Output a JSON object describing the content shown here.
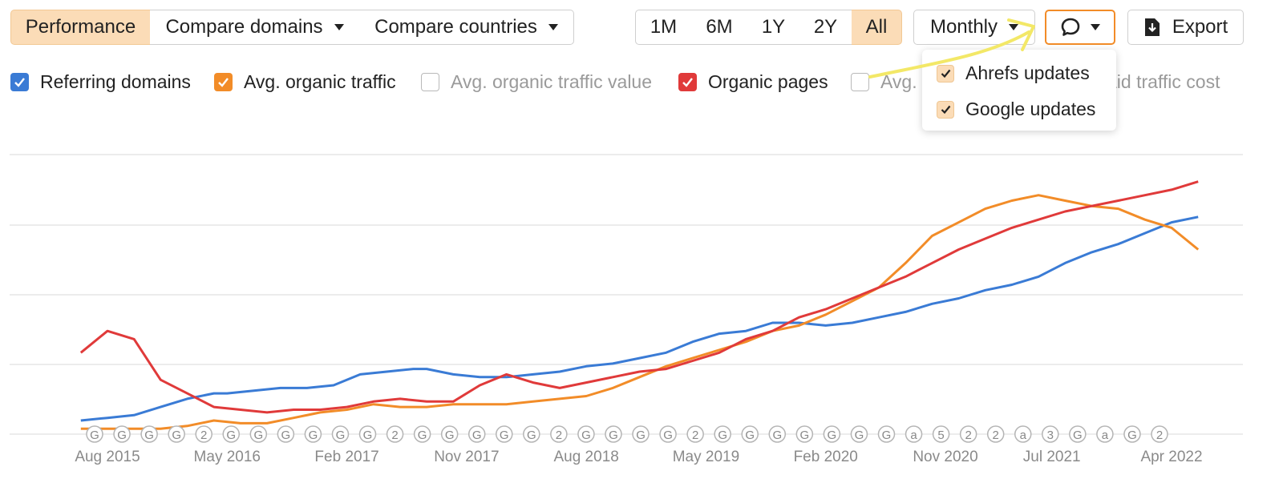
{
  "toolbar": {
    "performance": "Performance",
    "compare_domains": "Compare domains",
    "compare_countries": "Compare countries",
    "ranges": [
      "1M",
      "6M",
      "1Y",
      "2Y",
      "All"
    ],
    "active_range": "All",
    "interval": "Monthly",
    "export": "Export"
  },
  "metrics": [
    {
      "label": "Referring domains",
      "checked": true,
      "color": "#3a7bd5"
    },
    {
      "label": "Avg. organic traffic",
      "checked": true,
      "color": "#f28c28"
    },
    {
      "label": "Avg. organic traffic value",
      "checked": false,
      "color": "#b9b9b9"
    },
    {
      "label": "Organic pages",
      "checked": true,
      "color": "#e03a3a"
    },
    {
      "label": "Avg.",
      "checked": false,
      "color": "#b9b9b9"
    },
    {
      "label": "aid traffic cost",
      "checked": false,
      "color": "#b9b9b9"
    }
  ],
  "annotations_menu": {
    "items": [
      {
        "label": "Ahrefs updates",
        "checked": true
      },
      {
        "label": "Google updates",
        "checked": true
      }
    ]
  },
  "colors": {
    "accent_orange": "#f28c28",
    "highlight": "#f3e867",
    "blue": "#3a7bd5",
    "red": "#e03a3a"
  },
  "chart_data": {
    "type": "line",
    "x_tick_labels": [
      "Aug 2015",
      "May 2016",
      "Feb 2017",
      "Nov 2017",
      "Aug 2018",
      "May 2019",
      "Feb 2020",
      "Nov 2020",
      "Jul 2021",
      "Apr 2022"
    ],
    "x_tick_pos": [
      0,
      9,
      18,
      27,
      36,
      45,
      54,
      63,
      71,
      80
    ],
    "grid": true,
    "y_axis_labels": "none",
    "ylim": [
      0,
      100
    ],
    "series": [
      {
        "name": "Referring domains",
        "color": "#3a7bd5",
        "points": [
          [
            -2,
            5
          ],
          [
            0,
            6
          ],
          [
            2,
            7
          ],
          [
            4,
            10
          ],
          [
            6,
            13
          ],
          [
            8,
            15
          ],
          [
            9,
            15
          ],
          [
            11,
            16
          ],
          [
            13,
            17
          ],
          [
            15,
            17
          ],
          [
            17,
            18
          ],
          [
            19,
            22
          ],
          [
            21,
            23
          ],
          [
            23,
            24
          ],
          [
            24,
            24
          ],
          [
            26,
            22
          ],
          [
            28,
            21
          ],
          [
            30,
            21
          ],
          [
            32,
            22
          ],
          [
            34,
            23
          ],
          [
            36,
            25
          ],
          [
            38,
            26
          ],
          [
            40,
            28
          ],
          [
            42,
            30
          ],
          [
            44,
            34
          ],
          [
            46,
            37
          ],
          [
            48,
            38
          ],
          [
            50,
            41
          ],
          [
            52,
            41
          ],
          [
            54,
            40
          ],
          [
            56,
            41
          ],
          [
            58,
            43
          ],
          [
            60,
            45
          ],
          [
            62,
            48
          ],
          [
            64,
            50
          ],
          [
            66,
            53
          ],
          [
            68,
            55
          ],
          [
            70,
            58
          ],
          [
            72,
            63
          ],
          [
            74,
            67
          ],
          [
            76,
            70
          ],
          [
            78,
            74
          ],
          [
            80,
            78
          ],
          [
            82,
            80
          ]
        ]
      },
      {
        "name": "Avg. organic traffic",
        "color": "#f28c28",
        "points": [
          [
            -2,
            2
          ],
          [
            0,
            2
          ],
          [
            2,
            2
          ],
          [
            4,
            2
          ],
          [
            6,
            3
          ],
          [
            8,
            5
          ],
          [
            10,
            4
          ],
          [
            12,
            4
          ],
          [
            14,
            6
          ],
          [
            16,
            8
          ],
          [
            18,
            9
          ],
          [
            20,
            11
          ],
          [
            22,
            10
          ],
          [
            24,
            10
          ],
          [
            26,
            11
          ],
          [
            28,
            11
          ],
          [
            30,
            11
          ],
          [
            32,
            12
          ],
          [
            34,
            13
          ],
          [
            36,
            14
          ],
          [
            38,
            17
          ],
          [
            40,
            21
          ],
          [
            42,
            25
          ],
          [
            44,
            28
          ],
          [
            46,
            31
          ],
          [
            48,
            34
          ],
          [
            50,
            38
          ],
          [
            52,
            40
          ],
          [
            54,
            44
          ],
          [
            56,
            49
          ],
          [
            58,
            54
          ],
          [
            60,
            63
          ],
          [
            62,
            73
          ],
          [
            64,
            78
          ],
          [
            66,
            83
          ],
          [
            68,
            86
          ],
          [
            70,
            88
          ],
          [
            72,
            86
          ],
          [
            74,
            84
          ],
          [
            76,
            83
          ],
          [
            78,
            79
          ],
          [
            80,
            76
          ],
          [
            82,
            68
          ]
        ]
      },
      {
        "name": "Organic pages",
        "color": "#e03a3a",
        "points": [
          [
            -2,
            30
          ],
          [
            0,
            38
          ],
          [
            2,
            35
          ],
          [
            4,
            20
          ],
          [
            6,
            15
          ],
          [
            8,
            10
          ],
          [
            10,
            9
          ],
          [
            12,
            8
          ],
          [
            14,
            9
          ],
          [
            16,
            9
          ],
          [
            18,
            10
          ],
          [
            20,
            12
          ],
          [
            22,
            13
          ],
          [
            24,
            12
          ],
          [
            26,
            12
          ],
          [
            28,
            18
          ],
          [
            30,
            22
          ],
          [
            32,
            19
          ],
          [
            34,
            17
          ],
          [
            36,
            19
          ],
          [
            38,
            21
          ],
          [
            40,
            23
          ],
          [
            42,
            24
          ],
          [
            44,
            27
          ],
          [
            46,
            30
          ],
          [
            48,
            35
          ],
          [
            50,
            38
          ],
          [
            52,
            43
          ],
          [
            54,
            46
          ],
          [
            56,
            50
          ],
          [
            58,
            54
          ],
          [
            60,
            58
          ],
          [
            62,
            63
          ],
          [
            64,
            68
          ],
          [
            66,
            72
          ],
          [
            68,
            76
          ],
          [
            70,
            79
          ],
          [
            72,
            82
          ],
          [
            74,
            84
          ],
          [
            76,
            86
          ],
          [
            78,
            88
          ],
          [
            80,
            90
          ],
          [
            82,
            93
          ]
        ]
      }
    ],
    "event_markers": [
      "G",
      "G",
      "G",
      "G",
      "2",
      "G",
      "G",
      "G",
      "G",
      "G",
      "G",
      "2",
      "G",
      "G",
      "G",
      "G",
      "G",
      "2",
      "G",
      "G",
      "G",
      "G",
      "2",
      "G",
      "G",
      "G",
      "G",
      "G",
      "G",
      "G",
      "a",
      "5",
      "2",
      "2",
      "a",
      "3",
      "G",
      "a",
      "G",
      "2"
    ]
  }
}
